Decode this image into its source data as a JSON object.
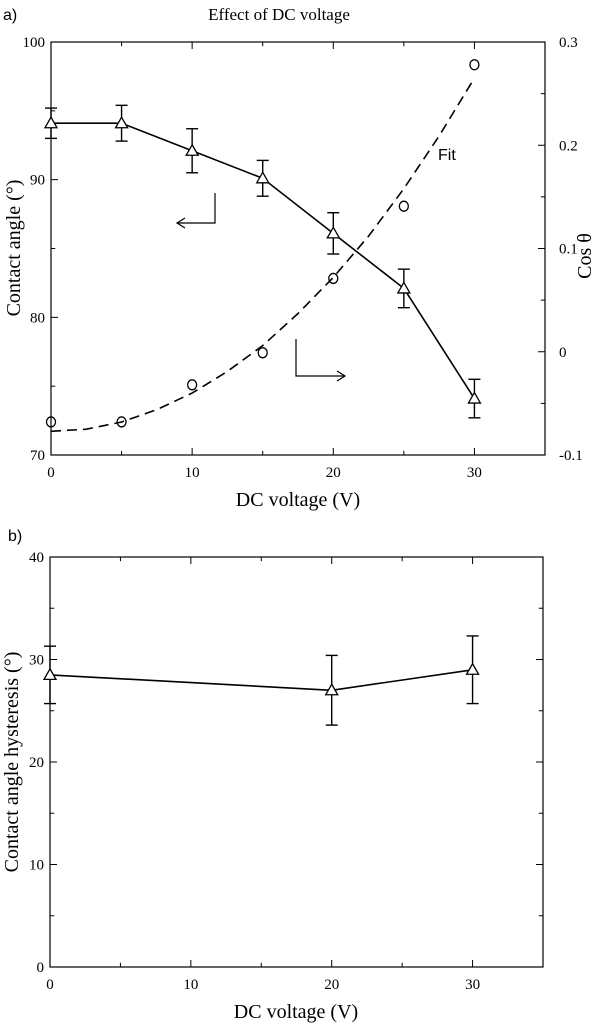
{
  "chart_data": [
    {
      "panel_label": "a)",
      "type": "line",
      "title": "Effect of DC voltage",
      "xlabel": "DC voltage (V)",
      "ylabel": "Contact angle (°)",
      "y2label": "Cos θ",
      "xlim": [
        0,
        35
      ],
      "ylim": [
        70,
        100
      ],
      "y2lim": [
        -0.1,
        0.3
      ],
      "x_ticks": [
        0,
        10,
        20,
        30
      ],
      "y_ticks": [
        70,
        80,
        90,
        100
      ],
      "y2_ticks": [
        -0.1,
        0,
        0.1,
        0.2,
        0.3
      ],
      "y2_tick_labels": [
        "-0.1",
        "0",
        "0.1",
        "0.2",
        "0.3"
      ],
      "annotation": "Fit",
      "series": [
        {
          "axis": "left",
          "marker": "triangle",
          "line": "solid",
          "x": [
            0,
            5,
            10,
            15,
            20,
            25,
            30
          ],
          "values": [
            94.1,
            94.1,
            92.1,
            90.1,
            86.1,
            82.1,
            74.1
          ],
          "error": [
            1.1,
            1.3,
            1.6,
            1.3,
            1.5,
            1.4,
            1.4
          ]
        },
        {
          "axis": "right",
          "marker": "circle",
          "line": "none",
          "x": [
            0,
            5,
            10,
            15,
            20,
            25,
            30
          ],
          "values": [
            -0.068,
            -0.068,
            -0.032,
            -0.001,
            0.071,
            0.141,
            0.278
          ]
        },
        {
          "axis": "right",
          "marker": "none",
          "line": "dashed",
          "x": [
            0,
            2.5,
            5,
            7.5,
            10,
            12.5,
            15,
            17.5,
            20,
            22.5,
            25,
            27.5,
            30
          ],
          "values": [
            -0.077,
            -0.075,
            -0.068,
            -0.056,
            -0.04,
            -0.019,
            0.006,
            0.037,
            0.072,
            0.112,
            0.158,
            0.209,
            0.265
          ]
        }
      ]
    },
    {
      "panel_label": "b)",
      "type": "line",
      "xlabel": "DC voltage (V)",
      "ylabel": "Contact angle hysteresis (°)",
      "xlim": [
        0,
        35
      ],
      "ylim": [
        0,
        40
      ],
      "x_ticks": [
        0,
        10,
        20,
        30
      ],
      "y_ticks": [
        0,
        10,
        20,
        30,
        40
      ],
      "series": [
        {
          "axis": "left",
          "marker": "triangle",
          "line": "solid",
          "x": [
            0,
            20,
            30
          ],
          "values": [
            28.5,
            27.0,
            29.0
          ],
          "error": [
            2.8,
            3.4,
            3.3
          ]
        }
      ]
    }
  ]
}
